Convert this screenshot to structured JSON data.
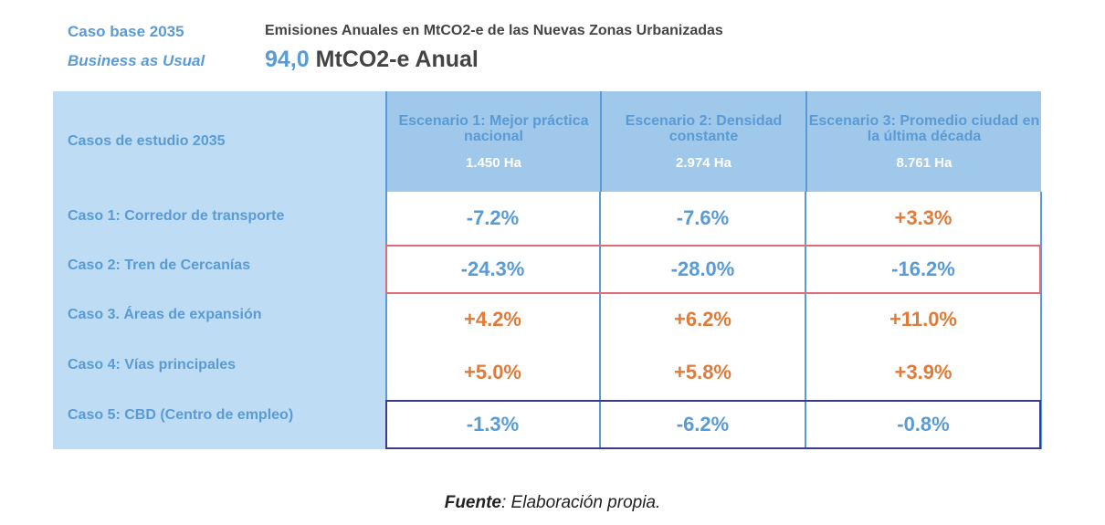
{
  "header": {
    "base_case": "Caso base 2035",
    "bau": "Business as Usual",
    "title": "Emisiones Anuales en MtCO2-e de las Nuevas Zonas Urbanizadas",
    "value": "94,0",
    "unit": "MtCO2-e Anual"
  },
  "table": {
    "corner": "Casos de estudio 2035",
    "columns": [
      {
        "label": "Escenario 1: Mejor práctica nacional",
        "area": "1.450 Ha"
      },
      {
        "label": "Escenario 2: Densidad constante",
        "area": "2.974 Ha"
      },
      {
        "label": "Escenario 3: Promedio ciudad en la última década",
        "area": "8.761 Ha"
      }
    ],
    "rows": [
      {
        "label": "Caso 1: Corredor de transporte",
        "values": [
          "-7.2%",
          "-7.6%",
          "+3.3%"
        ]
      },
      {
        "label": "Caso 2: Tren de Cercanías",
        "values": [
          "-24.3%",
          "-28.0%",
          "-16.2%"
        ],
        "highlight": "#e06c7a"
      },
      {
        "label": "Caso 3. Áreas de expansión",
        "values": [
          "+4.2%",
          "+6.2%",
          "+11.0%"
        ]
      },
      {
        "label": "Caso 4: Vías principales",
        "values": [
          "+5.0%",
          "+5.8%",
          "+3.9%"
        ]
      },
      {
        "label": "Caso 5: CBD (Centro de empleo)",
        "values": [
          "-1.3%",
          "-6.2%",
          "-0.8%"
        ],
        "highlight": "#3b3a8c"
      }
    ]
  },
  "colors": {
    "negative": "#5b9bd5",
    "positive": "#e07b39"
  },
  "source": {
    "label": "Fuente",
    "text": ": Elaboración propia."
  }
}
